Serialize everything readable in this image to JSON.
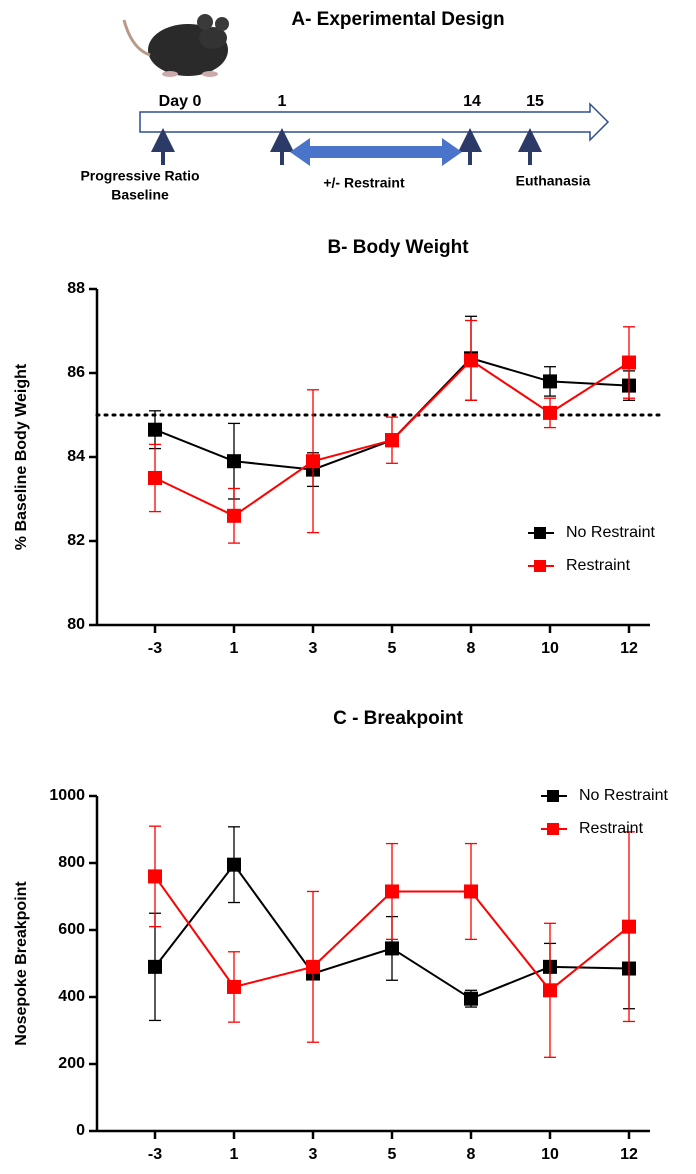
{
  "design": {
    "title": "A- Experimental Design",
    "timeline_labels": [
      "Day 0",
      "1",
      "14",
      "15"
    ],
    "events": {
      "baseline": [
        "Progressive Ratio",
        "Baseline"
      ],
      "restraint": "+/- Restraint",
      "euthanasia": "Euthanasia"
    }
  },
  "chart_data": [
    {
      "type": "line",
      "title": "B- Body Weight",
      "y_label": "% Baseline Body Weight",
      "categories": [
        "-3",
        "1",
        "3",
        "5",
        "8",
        "10",
        "12"
      ],
      "ylim": [
        80,
        88
      ],
      "yticks": [
        80,
        82,
        84,
        86,
        88
      ],
      "reference_line": 85,
      "legend": "right",
      "series": [
        {
          "name": "No Restraint",
          "color": "#000000",
          "values": [
            84.65,
            83.9,
            83.7,
            84.4,
            86.35,
            85.8,
            85.7
          ],
          "errors": [
            0.45,
            0.9,
            0.4,
            0.1,
            1.0,
            0.35,
            0.35
          ]
        },
        {
          "name": "Restraint",
          "color": "#ff0000",
          "values": [
            83.5,
            82.6,
            83.9,
            84.4,
            86.3,
            85.05,
            86.25
          ],
          "errors": [
            0.8,
            0.65,
            1.7,
            0.55,
            0.95,
            0.35,
            0.85
          ]
        }
      ]
    },
    {
      "type": "line",
      "title": "C - Breakpoint",
      "y_label": "Nosepoke Breakpoint",
      "categories": [
        "-3",
        "1",
        "3",
        "5",
        "8",
        "10",
        "12"
      ],
      "ylim": [
        0,
        1000
      ],
      "yticks": [
        0,
        200,
        400,
        600,
        800,
        1000
      ],
      "legend": "upper right",
      "series": [
        {
          "name": "No Restraint",
          "color": "#000000",
          "values": [
            490,
            795,
            470,
            545,
            395,
            490,
            485
          ],
          "errors": [
            160,
            113,
            15,
            95,
            25,
            70,
            120
          ]
        },
        {
          "name": "Restraint",
          "color": "#ff0000",
          "values": [
            760,
            430,
            490,
            715,
            715,
            420,
            610
          ],
          "errors": [
            150,
            105,
            225,
            143,
            143,
            200,
            283
          ]
        }
      ]
    }
  ]
}
